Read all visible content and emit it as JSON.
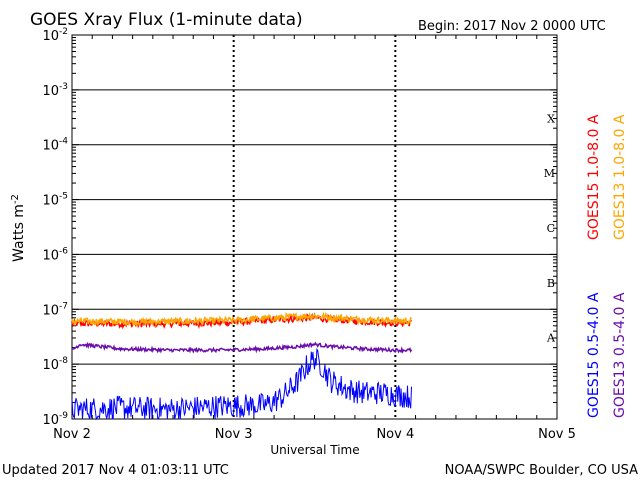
{
  "chart_data": {
    "type": "line",
    "title": "GOES Xray Flux (1-minute data)",
    "begin_label": "Begin:  2017 Nov 2 0000 UTC",
    "xlabel": "Universal Time",
    "ylabel": "Watts m",
    "ylabel_exponent": "-2",
    "y_scale": "log",
    "ylim": [
      1e-09,
      0.01
    ],
    "y_ticks": [
      {
        "value": 1e-09,
        "base": "10",
        "exp": "-9"
      },
      {
        "value": 1e-08,
        "base": "10",
        "exp": "-8"
      },
      {
        "value": 1e-07,
        "base": "10",
        "exp": "-7"
      },
      {
        "value": 1e-06,
        "base": "10",
        "exp": "-6"
      },
      {
        "value": 1e-05,
        "base": "10",
        "exp": "-5"
      },
      {
        "value": 0.0001,
        "base": "10",
        "exp": "-4"
      },
      {
        "value": 0.001,
        "base": "10",
        "exp": "-3"
      },
      {
        "value": 0.01,
        "base": "10",
        "exp": "-2"
      }
    ],
    "x_ticks": [
      "Nov 2",
      "Nov 3",
      "Nov 4",
      "Nov 5"
    ],
    "flare_classes": [
      {
        "label": "A",
        "lower": 1e-08
      },
      {
        "label": "B",
        "lower": 1e-07
      },
      {
        "label": "C",
        "lower": 1e-06
      },
      {
        "label": "M",
        "lower": 1e-05
      },
      {
        "label": "X",
        "lower": 0.0001
      }
    ],
    "series": [
      {
        "name": "GOES15 1.0-8.0 A",
        "color": "#ff0000",
        "x_days": [
          0,
          0.2,
          0.4,
          0.6,
          0.8,
          1.0,
          1.2,
          1.4,
          1.5,
          1.6,
          1.8,
          2.0,
          2.1
        ],
        "values": [
          5.5e-08,
          5.5e-08,
          5.4e-08,
          5.5e-08,
          5.6e-08,
          5.8e-08,
          6.3e-08,
          6.8e-08,
          7e-08,
          6.6e-08,
          6e-08,
          5.7e-08,
          5.6e-08
        ]
      },
      {
        "name": "GOES13 1.0-8.0 A",
        "color": "#ffa500",
        "x_days": [
          0,
          0.2,
          0.4,
          0.6,
          0.8,
          1.0,
          1.2,
          1.4,
          1.5,
          1.6,
          1.8,
          2.0,
          2.1
        ],
        "values": [
          6e-08,
          6e-08,
          5.9e-08,
          6e-08,
          6.1e-08,
          6.3e-08,
          6.8e-08,
          7.4e-08,
          7.6e-08,
          7.1e-08,
          6.5e-08,
          6.2e-08,
          6.1e-08
        ]
      },
      {
        "name": "GOES15 0.5-4.0 A",
        "color": "#0000ff",
        "x_days": [
          0,
          0.3,
          0.6,
          0.9,
          1.2,
          1.3,
          1.4,
          1.45,
          1.5,
          1.55,
          1.6,
          1.7,
          1.8,
          1.9,
          2.0,
          2.1
        ],
        "values": [
          1.5e-09,
          1.6e-09,
          1.5e-09,
          1.7e-09,
          1.8e-09,
          2.5e-09,
          5e-09,
          9e-09,
          1.3e-08,
          9e-09,
          5e-09,
          3.5e-09,
          3e-09,
          3e-09,
          2.8e-09,
          2.5e-09
        ]
      },
      {
        "name": "GOES13 0.5-4.0 A",
        "color": "#6a0dad",
        "x_days": [
          0,
          0.05,
          0.3,
          0.6,
          0.9,
          1.2,
          1.4,
          1.5,
          1.6,
          1.8,
          2.0,
          2.1
        ],
        "values": [
          1.8e-08,
          2.3e-08,
          1.9e-08,
          1.8e-08,
          1.8e-08,
          1.9e-08,
          2.1e-08,
          2.3e-08,
          2.1e-08,
          1.9e-08,
          1.8e-08,
          1.8e-08
        ]
      }
    ],
    "grid": true
  },
  "footer": {
    "updated": "Updated 2017 Nov  4 01:03:11 UTC",
    "credit": "NOAA/SWPC Boulder, CO USA"
  }
}
